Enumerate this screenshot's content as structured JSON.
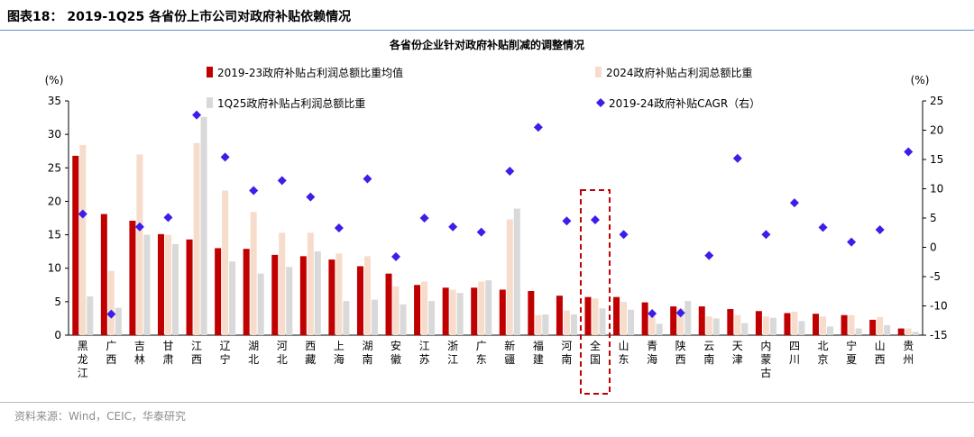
{
  "header": {
    "figure_title": "图表18：  2019-1Q25 各省份上市公司对政府补贴依赖情况"
  },
  "footer": {
    "source": "资料来源：Wind，CEIC，华泰研究"
  },
  "chart_data": {
    "type": "bar",
    "title": "各省份企业针对政府补贴削减的调整情况",
    "left_unit": "(%)",
    "right_unit": "(%)",
    "ylim": [
      0,
      35
    ],
    "yticks": [
      0,
      5,
      10,
      15,
      20,
      25,
      30,
      35
    ],
    "y2lim": [
      -15,
      25
    ],
    "y2ticks": [
      -15,
      -10,
      -5,
      0,
      5,
      10,
      15,
      20,
      25
    ],
    "legend_placement": "top",
    "highlight_category": "全国",
    "categories": [
      "黑龙江",
      "广西",
      "吉林",
      "甘肃",
      "江西",
      "辽宁",
      "湖北",
      "河北",
      "西藏",
      "上海",
      "湖南",
      "安徽",
      "江苏",
      "浙江",
      "广东",
      "新疆",
      "福建",
      "河南",
      "全国",
      "山东",
      "青海",
      "陕西",
      "云南",
      "天津",
      "内蒙古",
      "四川",
      "北京",
      "宁夏",
      "山西",
      "贵州"
    ],
    "series": [
      {
        "name": "2019-23政府补贴占利润总额比重均值",
        "type": "bar",
        "axis": "left",
        "color": "#c00000",
        "values": [
          26.8,
          18.1,
          17.1,
          15.1,
          14.3,
          13.0,
          12.9,
          12.0,
          11.8,
          11.3,
          10.3,
          9.2,
          7.5,
          7.1,
          7.1,
          6.8,
          6.6,
          5.9,
          5.7,
          5.7,
          4.9,
          4.3,
          4.3,
          3.9,
          3.6,
          3.3,
          3.2,
          3.0,
          2.3,
          1.0
        ]
      },
      {
        "name": "2024政府补贴占利润总额比重",
        "type": "bar",
        "axis": "left",
        "color": "#f7dccb",
        "values": [
          28.4,
          9.6,
          27.0,
          15.0,
          28.7,
          21.6,
          18.4,
          15.3,
          15.3,
          12.2,
          11.8,
          7.3,
          8.0,
          6.8,
          8.0,
          17.3,
          3.0,
          3.7,
          5.5,
          5.0,
          2.8,
          4.0,
          2.8,
          3.0,
          2.8,
          3.5,
          2.8,
          3.0,
          2.7,
          1.0
        ]
      },
      {
        "name": "1Q25政府补贴占利润总额比重",
        "type": "bar",
        "axis": "left",
        "color": "#d9d9d9",
        "values": [
          5.8,
          4.1,
          15.0,
          13.6,
          32.6,
          11.0,
          9.2,
          10.2,
          12.5,
          5.1,
          5.3,
          4.6,
          5.1,
          6.3,
          8.2,
          18.9,
          3.1,
          3.1,
          4.0,
          3.8,
          1.7,
          5.1,
          2.5,
          1.8,
          2.6,
          2.1,
          1.3,
          1.0,
          1.5,
          0.5
        ]
      },
      {
        "name": "2019-24政府补贴CAGR（右）",
        "type": "scatter",
        "axis": "right",
        "color": "#3b1ee8",
        "values": [
          5.7,
          -11.4,
          3.5,
          5.1,
          22.6,
          15.4,
          9.7,
          11.4,
          8.6,
          3.3,
          11.7,
          -1.6,
          5.0,
          3.5,
          2.6,
          13.0,
          20.5,
          4.5,
          4.7,
          2.2,
          -11.3,
          -11.2,
          -1.4,
          15.2,
          2.2,
          7.6,
          3.4,
          0.9,
          3.0,
          16.3
        ]
      }
    ]
  }
}
